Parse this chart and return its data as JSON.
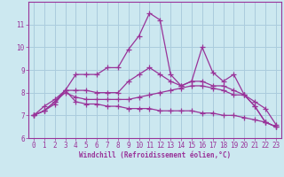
{
  "xlabel": "Windchill (Refroidissement éolien,°C)",
  "background_color": "#cce8f0",
  "grid_color": "#aaccdd",
  "line_color": "#993399",
  "x_values": [
    0,
    1,
    2,
    3,
    4,
    5,
    6,
    7,
    8,
    9,
    10,
    11,
    12,
    13,
    14,
    15,
    16,
    17,
    18,
    19,
    20,
    21,
    22,
    23
  ],
  "series": [
    [
      7.0,
      7.2,
      7.5,
      8.1,
      8.8,
      8.8,
      8.8,
      9.1,
      9.1,
      9.9,
      10.5,
      11.5,
      11.2,
      8.8,
      8.3,
      8.5,
      10.0,
      8.9,
      8.5,
      8.8,
      7.9,
      7.4,
      6.7,
      6.5
    ],
    [
      7.0,
      7.2,
      7.6,
      8.1,
      8.1,
      8.1,
      8.0,
      8.0,
      8.0,
      8.5,
      8.8,
      9.1,
      8.8,
      8.5,
      8.3,
      8.5,
      8.5,
      8.3,
      8.3,
      8.1,
      7.9,
      7.4,
      6.7,
      6.5
    ],
    [
      7.0,
      7.2,
      7.6,
      8.0,
      7.8,
      7.7,
      7.7,
      7.7,
      7.7,
      7.7,
      7.8,
      7.9,
      8.0,
      8.1,
      8.2,
      8.3,
      8.3,
      8.2,
      8.1,
      7.9,
      7.9,
      7.6,
      7.3,
      6.6
    ],
    [
      7.0,
      7.4,
      7.7,
      8.1,
      7.6,
      7.5,
      7.5,
      7.4,
      7.4,
      7.3,
      7.3,
      7.3,
      7.2,
      7.2,
      7.2,
      7.2,
      7.1,
      7.1,
      7.0,
      7.0,
      6.9,
      6.8,
      6.7,
      6.5
    ]
  ],
  "ylim": [
    6.0,
    12.0
  ],
  "xlim": [
    -0.5,
    23.5
  ],
  "yticks": [
    6,
    7,
    8,
    9,
    10,
    11
  ],
  "xticks": [
    0,
    1,
    2,
    3,
    4,
    5,
    6,
    7,
    8,
    9,
    10,
    11,
    12,
    13,
    14,
    15,
    16,
    17,
    18,
    19,
    20,
    21,
    22,
    23
  ]
}
